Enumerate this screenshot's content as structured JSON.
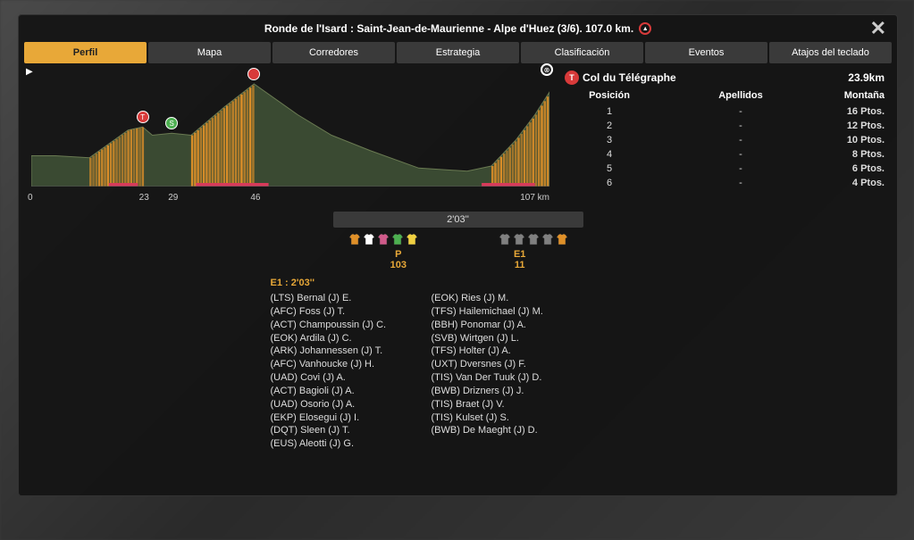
{
  "title": "Ronde de l'Isard : Saint-Jean-de-Maurienne - Alpe d'Huez (3/6). 107.0 km.",
  "tabs": [
    {
      "label": "Perfil",
      "active": true
    },
    {
      "label": "Mapa",
      "active": false
    },
    {
      "label": "Corredores",
      "active": false
    },
    {
      "label": "Estrategia",
      "active": false
    },
    {
      "label": "Clasificación",
      "active": false
    },
    {
      "label": "Eventos",
      "active": false
    },
    {
      "label": "Atajos del teclado",
      "active": false
    }
  ],
  "profile": {
    "width_km": 107,
    "km_ticks": [
      {
        "km": 0,
        "label": "0"
      },
      {
        "km": 23,
        "label": "23"
      },
      {
        "km": 29,
        "label": "29"
      },
      {
        "km": 46,
        "label": "46"
      },
      {
        "km": 107,
        "label": "107 km"
      }
    ],
    "elevation_points": [
      {
        "km": 0,
        "h": 0.3
      },
      {
        "km": 5,
        "h": 0.3
      },
      {
        "km": 12,
        "h": 0.28
      },
      {
        "km": 20,
        "h": 0.55
      },
      {
        "km": 23,
        "h": 0.58
      },
      {
        "km": 25,
        "h": 0.5
      },
      {
        "km": 29,
        "h": 0.52
      },
      {
        "km": 33,
        "h": 0.5
      },
      {
        "km": 40,
        "h": 0.78
      },
      {
        "km": 46,
        "h": 1.0
      },
      {
        "km": 55,
        "h": 0.7
      },
      {
        "km": 62,
        "h": 0.5
      },
      {
        "km": 70,
        "h": 0.35
      },
      {
        "km": 80,
        "h": 0.18
      },
      {
        "km": 90,
        "h": 0.15
      },
      {
        "km": 95,
        "h": 0.2
      },
      {
        "km": 100,
        "h": 0.45
      },
      {
        "km": 104,
        "h": 0.7
      },
      {
        "km": 107,
        "h": 0.92
      }
    ],
    "climb_segments": [
      {
        "from": 12,
        "to": 23,
        "color": "#e09028"
      },
      {
        "from": 33,
        "to": 46,
        "color": "#e09028"
      },
      {
        "from": 95,
        "to": 107,
        "color": "#e09028"
      }
    ],
    "red_segments": [
      {
        "from": 16,
        "to": 22
      },
      {
        "from": 34,
        "to": 49
      },
      {
        "from": 93,
        "to": 104
      }
    ],
    "markers": [
      {
        "type": "red",
        "km": 23,
        "label": "T",
        "y": 0.58
      },
      {
        "type": "green",
        "km": 29,
        "label": "S",
        "y": 0.52
      },
      {
        "type": "crown",
        "km": 46,
        "label": "",
        "y": 1.0
      }
    ],
    "colors": {
      "fill": "#3a4a32",
      "line": "#6a7a52",
      "climb": "#e09028",
      "red_seg": "#d83a5a"
    }
  },
  "mountain": {
    "badge": "T",
    "name": "Col du Télégraphe",
    "distance": "23.9km",
    "headers": {
      "pos": "Posición",
      "name": "Apellidos",
      "pts": "Montaña"
    },
    "rows": [
      {
        "pos": "1",
        "name": "-",
        "pts": "16 Ptos."
      },
      {
        "pos": "2",
        "name": "-",
        "pts": "12 Ptos."
      },
      {
        "pos": "3",
        "name": "-",
        "pts": "10 Ptos."
      },
      {
        "pos": "4",
        "name": "-",
        "pts": "8 Ptos."
      },
      {
        "pos": "5",
        "name": "-",
        "pts": "6 Ptos."
      },
      {
        "pos": "6",
        "name": "-",
        "pts": "4 Ptos."
      }
    ]
  },
  "gap_label": "2'03''",
  "jersey_groups": [
    {
      "colors": [
        "#e09028",
        "#ffffff",
        "#d05a8a",
        "#4caf50",
        "#f0d040"
      ]
    },
    {
      "colors": [
        "#808080",
        "#808080",
        "#808080",
        "#808080",
        "#e09028"
      ]
    }
  ],
  "groups": {
    "left": {
      "tag": "P",
      "count": "103"
    },
    "right": {
      "tag": "E1",
      "count": "11"
    }
  },
  "group_heading": "E1 : 2'03''",
  "riders": {
    "col1": [
      "(LTS) Bernal (J) E.",
      "(AFC) Foss (J) T.",
      "(ACT) Champoussin (J) C.",
      "(EOK) Ardila (J) C.",
      "(ARK) Johannessen (J) T.",
      "(AFC) Vanhoucke (J) H.",
      "(UAD) Covi (J) A.",
      "(ACT) Bagioli (J) A.",
      "(UAD) Osorio (J) A.",
      "(EKP) Elosegui (J) I.",
      "(DQT) Sleen (J) T.",
      "(EUS) Aleotti (J) G."
    ],
    "col2": [
      "(EOK) Ries (J) M.",
      "(TFS) Hailemichael (J) M.",
      "(BBH) Ponomar (J) A.",
      "(SVB) Wirtgen (J) L.",
      "(TFS) Holter (J) A.",
      "(UXT) Dversnes (J) F.",
      "(TIS) Van Der Tuuk (J) D.",
      "(BWB) Drizners (J) J.",
      "(TIS) Braet (J) V.",
      "(TIS) Kulset (J) S.",
      "(BWB) De Maeght (J) D."
    ]
  }
}
